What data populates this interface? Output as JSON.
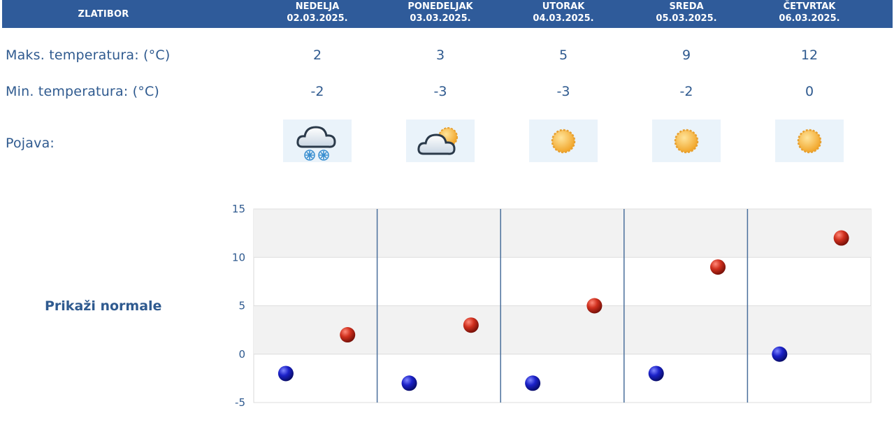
{
  "header": {
    "station": "ZLATIBOR",
    "days": [
      {
        "name": "NEDELJA",
        "date": "02.03.2025."
      },
      {
        "name": "PONEDELJAK",
        "date": "03.03.2025."
      },
      {
        "name": "UTORAK",
        "date": "04.03.2025."
      },
      {
        "name": "SREDA",
        "date": "05.03.2025."
      },
      {
        "name": "ČETVRTAK",
        "date": "06.03.2025."
      }
    ]
  },
  "rows": {
    "max_label": "Maks. temperatura: (°C)",
    "min_label": "Min. temperatura: (°C)",
    "phenomenon_label": "Pojava:",
    "max_values": [
      "2",
      "3",
      "5",
      "9",
      "12"
    ],
    "min_values": [
      "-2",
      "-3",
      "-3",
      "-2",
      "0"
    ],
    "icons": [
      "snow-cloud-icon",
      "partly-cloudy-icon",
      "sun-icon",
      "sun-icon",
      "sun-icon"
    ]
  },
  "normals_link": "Prikaži normale",
  "colors": {
    "header_bg": "#2f5b9a",
    "text": "#2f5a8f",
    "max_marker": "#c0281c",
    "min_marker": "#1a1fb0",
    "band": "#f2f2f2"
  },
  "chart_data": {
    "type": "scatter",
    "categories": [
      "02.03.2025.",
      "03.03.2025.",
      "04.03.2025.",
      "05.03.2025.",
      "06.03.2025."
    ],
    "series": [
      {
        "values": [
          -2,
          -3,
          -3,
          -2,
          0
        ]
      },
      {
        "values": [
          2,
          3,
          5,
          9,
          12
        ]
      }
    ],
    "ylim": [
      -5,
      15
    ],
    "yticks": [
      "15",
      "10",
      "5",
      "0",
      "-5"
    ],
    "grid": true
  }
}
